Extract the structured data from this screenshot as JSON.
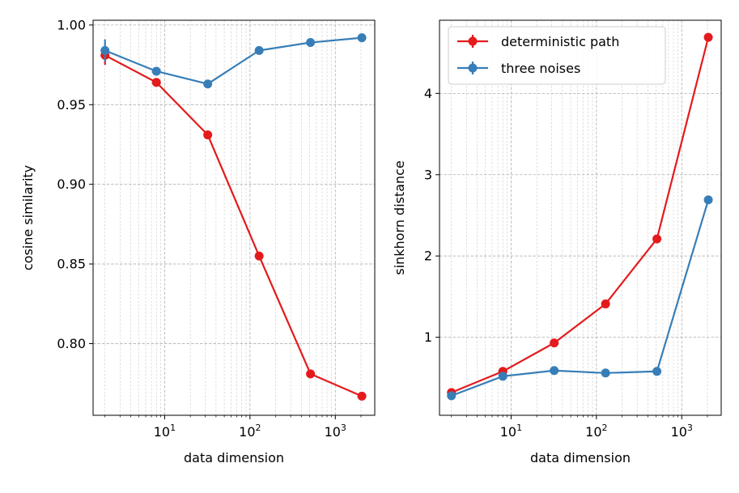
{
  "chart_data": [
    {
      "type": "line",
      "panel": "left",
      "xscale": "log",
      "xlabel": "data dimension",
      "ylabel": "cosine similarity",
      "xlim": [
        1.45,
        2900
      ],
      "ylim": [
        0.755,
        1.003
      ],
      "x": [
        2,
        8,
        32,
        128,
        512,
        2048
      ],
      "xticks": [
        {
          "value": 10,
          "base": "10",
          "exp": "1"
        },
        {
          "value": 100,
          "base": "10",
          "exp": "2"
        },
        {
          "value": 1000,
          "base": "10",
          "exp": "3"
        }
      ],
      "yticks": [
        {
          "value": 0.8,
          "label": "0.80"
        },
        {
          "value": 0.85,
          "label": "0.85"
        },
        {
          "value": 0.9,
          "label": "0.90"
        },
        {
          "value": 0.95,
          "label": "0.95"
        },
        {
          "value": 1.0,
          "label": "1.00"
        }
      ],
      "grid": true,
      "series": [
        {
          "name": "deterministic path",
          "color": "#e41a1c",
          "values": [
            0.981,
            0.964,
            0.931,
            0.855,
            0.781,
            0.767
          ],
          "errors": [
            0.006,
            0.002,
            0.001,
            0.001,
            0.001,
            0.001
          ]
        },
        {
          "name": "three noises",
          "color": "#377eb8",
          "values": [
            0.984,
            0.971,
            0.963,
            0.984,
            0.989,
            0.992
          ],
          "errors": [
            0.007,
            0.002,
            0.001,
            0.001,
            0.001,
            0.001
          ]
        }
      ]
    },
    {
      "type": "line",
      "panel": "right",
      "xscale": "log",
      "xlabel": "data dimension",
      "ylabel": "sinkhorn distance",
      "xlim": [
        1.45,
        2900
      ],
      "ylim": [
        0.04,
        4.9
      ],
      "x": [
        2,
        8,
        32,
        128,
        512,
        2048
      ],
      "xticks": [
        {
          "value": 10,
          "base": "10",
          "exp": "1"
        },
        {
          "value": 100,
          "base": "10",
          "exp": "2"
        },
        {
          "value": 1000,
          "base": "10",
          "exp": "3"
        }
      ],
      "yticks": [
        {
          "value": 1,
          "label": "1"
        },
        {
          "value": 2,
          "label": "2"
        },
        {
          "value": 3,
          "label": "3"
        },
        {
          "value": 4,
          "label": "4"
        }
      ],
      "grid": true,
      "legend": "top-left",
      "series": [
        {
          "name": "deterministic path",
          "color": "#e41a1c",
          "values": [
            0.32,
            0.58,
            0.93,
            1.41,
            2.21,
            4.69
          ],
          "errors": [
            0.01,
            0.01,
            0.01,
            0.02,
            0.02,
            0.03
          ]
        },
        {
          "name": "three noises",
          "color": "#377eb8",
          "values": [
            0.28,
            0.52,
            0.59,
            0.56,
            0.58,
            2.69
          ],
          "errors": [
            0.01,
            0.01,
            0.01,
            0.01,
            0.01,
            0.03
          ]
        }
      ]
    }
  ]
}
